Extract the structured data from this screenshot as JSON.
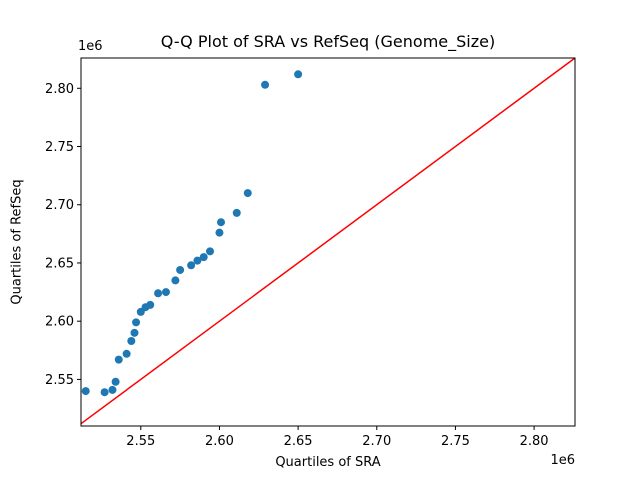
{
  "figure": {
    "background": "#ffffff"
  },
  "chart_data": {
    "type": "scatter",
    "title": "Q-Q Plot of SRA vs RefSeq (Genome_Size)",
    "xlabel": "Quartiles of SRA",
    "ylabel": "Quartiles of RefSeq",
    "x_offset_label": "1e6",
    "y_offset_label": "1e6",
    "units_note": "all x/y values are in units of 1e6 (genome size, bp)",
    "xlim": [
      2.512,
      2.826
    ],
    "ylim": [
      2.51,
      2.826
    ],
    "xticks": [
      2.55,
      2.6,
      2.65,
      2.7,
      2.75,
      2.8
    ],
    "xtick_labels": [
      "2.55",
      "2.60",
      "2.65",
      "2.70",
      "2.75",
      "2.80"
    ],
    "yticks": [
      2.55,
      2.6,
      2.65,
      2.7,
      2.75,
      2.8
    ],
    "ytick_labels": [
      "2.55",
      "2.60",
      "2.65",
      "2.70",
      "2.75",
      "2.80"
    ],
    "grid": false,
    "legend": null,
    "marker_color": "#1f77b4",
    "marker_radius": 4,
    "axes_color": "#000000",
    "ref_line": {
      "type": "y=x",
      "from": 2.512,
      "to": 2.826,
      "color": "#ff0000",
      "width": 1.5
    },
    "points": [
      [
        2.515,
        2.54
      ],
      [
        2.527,
        2.539
      ],
      [
        2.532,
        2.541
      ],
      [
        2.534,
        2.548
      ],
      [
        2.536,
        2.567
      ],
      [
        2.541,
        2.572
      ],
      [
        2.544,
        2.583
      ],
      [
        2.546,
        2.59
      ],
      [
        2.547,
        2.599
      ],
      [
        2.55,
        2.608
      ],
      [
        2.553,
        2.612
      ],
      [
        2.556,
        2.614
      ],
      [
        2.561,
        2.624
      ],
      [
        2.566,
        2.625
      ],
      [
        2.572,
        2.635
      ],
      [
        2.575,
        2.644
      ],
      [
        2.582,
        2.648
      ],
      [
        2.586,
        2.652
      ],
      [
        2.59,
        2.655
      ],
      [
        2.594,
        2.66
      ],
      [
        2.6,
        2.676
      ],
      [
        2.601,
        2.685
      ],
      [
        2.611,
        2.693
      ],
      [
        2.618,
        2.71
      ],
      [
        2.629,
        2.803
      ],
      [
        2.65,
        2.812
      ]
    ]
  }
}
